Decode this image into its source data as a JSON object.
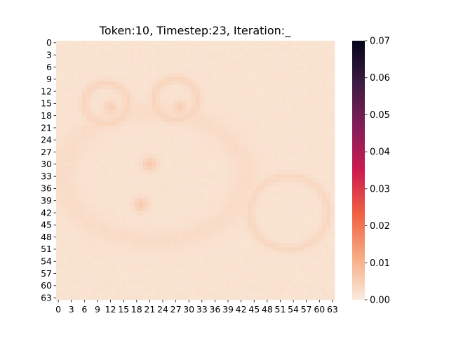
{
  "chart_data": {
    "type": "heatmap",
    "title": "Token:10, Timestep:23, Iteration:_",
    "xlabel": "",
    "ylabel": "",
    "rows": 64,
    "cols": 64,
    "x_tick_labels": [
      "0",
      "3",
      "6",
      "9",
      "12",
      "15",
      "18",
      "21",
      "24",
      "27",
      "30",
      "33",
      "36",
      "39",
      "42",
      "45",
      "48",
      "51",
      "54",
      "57",
      "60",
      "63"
    ],
    "y_tick_labels": [
      "0",
      "3",
      "6",
      "9",
      "12",
      "15",
      "18",
      "21",
      "24",
      "27",
      "30",
      "33",
      "36",
      "39",
      "42",
      "45",
      "48",
      "51",
      "54",
      "57",
      "60",
      "63"
    ],
    "colorbar": {
      "min": 0.0,
      "max": 0.07,
      "tick_labels": [
        "0.00",
        "0.01",
        "0.02",
        "0.03",
        "0.04",
        "0.05",
        "0.06",
        "0.07"
      ],
      "colormap": "rocket_r",
      "stops": [
        "#faebdd",
        "#f6aa82",
        "#f06043",
        "#cb1b4f",
        "#841e5a",
        "#3f1b44",
        "#03051a"
      ]
    },
    "value_estimates": {
      "background": 0.0015,
      "faint_outline": 0.003,
      "bright_spots": 0.006
    },
    "features": [
      {
        "kind": "ring",
        "center": [
          11,
          15
        ],
        "radius": 5,
        "value": 0.004
      },
      {
        "kind": "ring",
        "center": [
          27,
          14
        ],
        "radius": 5,
        "value": 0.004
      },
      {
        "kind": "ring",
        "center": [
          53,
          42
        ],
        "radius": 9,
        "value": 0.0035
      },
      {
        "kind": "ellipse",
        "center": [
          22,
          33
        ],
        "radius": [
          21,
          16
        ],
        "value": 0.003
      },
      {
        "kind": "spot",
        "center": [
          21,
          30
        ],
        "value": 0.006
      },
      {
        "kind": "spot",
        "center": [
          19,
          40
        ],
        "value": 0.006
      },
      {
        "kind": "spot",
        "center": [
          12,
          16
        ],
        "value": 0.005
      },
      {
        "kind": "spot",
        "center": [
          28,
          16
        ],
        "value": 0.005
      }
    ]
  }
}
